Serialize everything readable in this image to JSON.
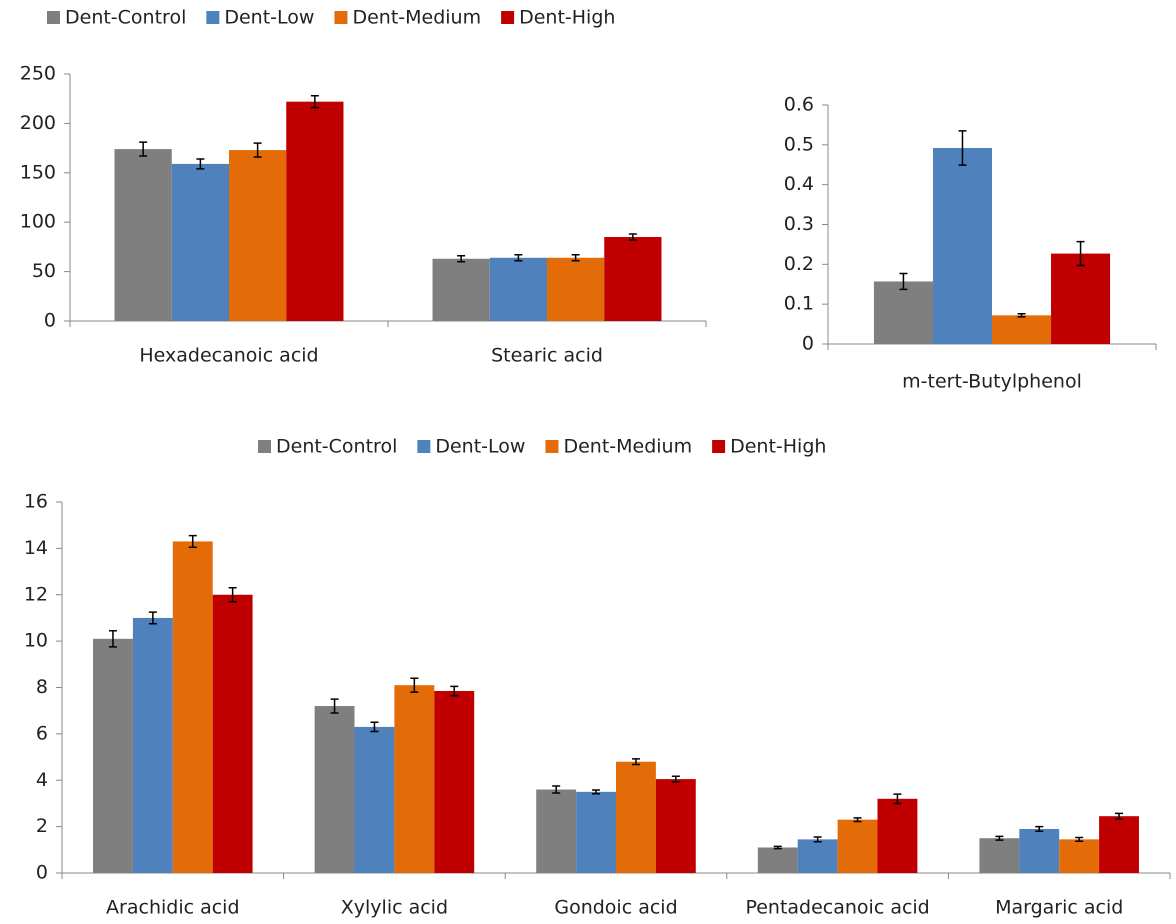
{
  "chart_data": [
    {
      "type": "bar",
      "categories": [
        "Hexadecanoic acid",
        "Stearic acid"
      ],
      "series": [
        {
          "name": "Dent-Control",
          "color": "#7f7f7f",
          "values": [
            174,
            63
          ],
          "errors": [
            7,
            3
          ]
        },
        {
          "name": "Dent-Low",
          "color": "#4f81bd",
          "values": [
            159,
            64
          ],
          "errors": [
            5,
            3
          ]
        },
        {
          "name": "Dent-Medium",
          "color": "#e36c09",
          "values": [
            173,
            64
          ],
          "errors": [
            7,
            3
          ]
        },
        {
          "name": "Dent-High",
          "color": "#c00000",
          "values": [
            222,
            85
          ],
          "errors": [
            6,
            3
          ]
        }
      ],
      "ylim": [
        0,
        250
      ],
      "yticks": [
        0,
        50,
        100,
        150,
        200,
        250
      ],
      "legend": "top-left"
    },
    {
      "type": "bar",
      "categories": [
        "m-tert-Butylphenol"
      ],
      "series": [
        {
          "color": "#7f7f7f",
          "values": [
            0.157
          ],
          "errors": [
            0.02
          ]
        },
        {
          "color": "#4f81bd",
          "values": [
            0.492
          ],
          "errors": [
            0.043
          ]
        },
        {
          "color": "#e36c09",
          "values": [
            0.072
          ],
          "errors": [
            0.004
          ]
        },
        {
          "color": "#c00000",
          "values": [
            0.227
          ],
          "errors": [
            0.03
          ]
        }
      ],
      "ylim": [
        0,
        0.6
      ],
      "yticks": [
        0,
        0.1,
        0.2,
        0.3,
        0.4,
        0.5,
        0.6
      ]
    },
    {
      "type": "bar",
      "categories": [
        "Arachidic acid",
        "Xylylic acid",
        "Gondoic acid",
        "Pentadecanoic acid",
        "Margaric acid"
      ],
      "series": [
        {
          "name": "Dent-Control",
          "color": "#7f7f7f",
          "values": [
            10.1,
            7.2,
            3.6,
            1.1,
            1.5
          ],
          "errors": [
            0.35,
            0.3,
            0.15,
            0.05,
            0.08
          ]
        },
        {
          "name": "Dent-Low",
          "color": "#4f81bd",
          "values": [
            11.0,
            6.3,
            3.5,
            1.45,
            1.9
          ],
          "errors": [
            0.25,
            0.2,
            0.08,
            0.1,
            0.1
          ]
        },
        {
          "name": "Dent-Medium",
          "color": "#e36c09",
          "values": [
            14.3,
            8.1,
            4.8,
            2.3,
            1.45
          ],
          "errors": [
            0.25,
            0.3,
            0.12,
            0.08,
            0.08
          ]
        },
        {
          "name": "Dent-High",
          "color": "#c00000",
          "values": [
            12.0,
            7.85,
            4.05,
            3.2,
            2.45
          ],
          "errors": [
            0.3,
            0.2,
            0.12,
            0.2,
            0.12
          ]
        }
      ],
      "ylim": [
        0,
        16
      ],
      "yticks": [
        0,
        2,
        4,
        6,
        8,
        10,
        12,
        14,
        16
      ],
      "legend": "top-center"
    }
  ]
}
